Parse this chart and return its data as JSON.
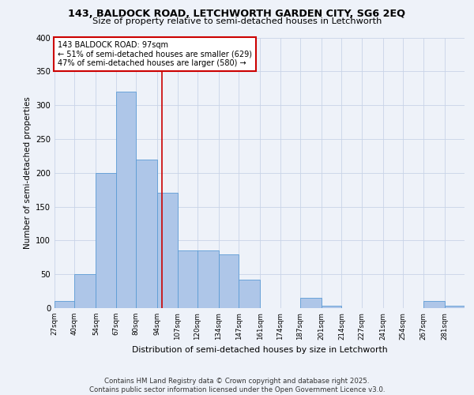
{
  "title1": "143, BALDOCK ROAD, LETCHWORTH GARDEN CITY, SG6 2EQ",
  "title2": "Size of property relative to semi-detached houses in Letchworth",
  "xlabel": "Distribution of semi-detached houses by size in Letchworth",
  "ylabel": "Number of semi-detached properties",
  "bins": [
    27,
    40,
    54,
    67,
    80,
    94,
    107,
    120,
    134,
    147,
    161,
    174,
    187,
    201,
    214,
    227,
    241,
    254,
    267,
    281,
    294
  ],
  "counts": [
    10,
    50,
    200,
    320,
    220,
    170,
    85,
    85,
    80,
    42,
    0,
    0,
    15,
    3,
    0,
    0,
    0,
    0,
    10,
    3
  ],
  "bar_color": "#aec6e8",
  "bar_edge_color": "#5b9bd5",
  "property_size": 97,
  "vline_color": "#cc0000",
  "annotation_text": "143 BALDOCK ROAD: 97sqm\n← 51% of semi-detached houses are smaller (629)\n47% of semi-detached houses are larger (580) →",
  "annotation_box_color": "#ffffff",
  "annotation_box_edge": "#cc0000",
  "footer": "Contains HM Land Registry data © Crown copyright and database right 2025.\nContains public sector information licensed under the Open Government Licence v3.0.",
  "bg_color": "#eef2f9",
  "grid_color": "#c8d4e8",
  "ylim": [
    0,
    400
  ],
  "yticks": [
    0,
    50,
    100,
    150,
    200,
    250,
    300,
    350,
    400
  ]
}
